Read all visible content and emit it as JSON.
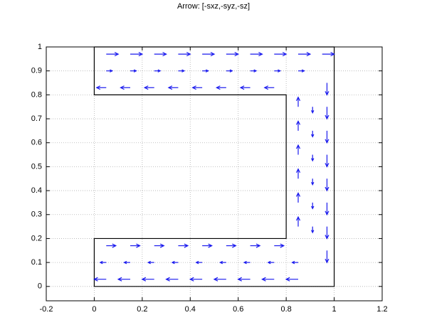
{
  "chart_data": {
    "type": "quiver",
    "title": "Arrow: [-sxz,-syz,-sz]",
    "xlim": [
      -0.2,
      1.2
    ],
    "ylim": [
      -0.06,
      1
    ],
    "xticks": [
      -0.2,
      0,
      0.2,
      0.4,
      0.6,
      0.8,
      1,
      1.2
    ],
    "yticks": [
      0,
      0.1,
      0.2,
      0.3,
      0.4,
      0.5,
      0.6,
      0.7,
      0.8,
      0.9,
      1
    ],
    "grid": true,
    "outline": {
      "color": "#000000",
      "x": [
        0,
        1,
        1,
        0,
        0,
        0.8,
        0.8,
        0,
        0
      ],
      "y": [
        1,
        1,
        0,
        0,
        0.2,
        0.2,
        0.8,
        0.8,
        1
      ]
    },
    "arrows": {
      "color": "#1a1aee",
      "x": [
        0.05,
        0.15,
        0.25,
        0.35,
        0.45,
        0.55,
        0.65,
        0.75,
        0.85,
        0.95,
        0.05,
        0.15,
        0.25,
        0.35,
        0.45,
        0.55,
        0.65,
        0.75,
        0.85,
        0.05,
        0.15,
        0.25,
        0.35,
        0.45,
        0.55,
        0.65,
        0.75,
        0.97,
        0.97,
        0.97,
        0.97,
        0.97,
        0.97,
        0.97,
        0.97,
        0.91,
        0.91,
        0.91,
        0.91,
        0.91,
        0.91,
        0.85,
        0.85,
        0.85,
        0.85,
        0.85,
        0.85,
        0.05,
        0.15,
        0.25,
        0.35,
        0.45,
        0.55,
        0.65,
        0.75,
        0.85,
        0.05,
        0.15,
        0.25,
        0.35,
        0.45,
        0.55,
        0.65,
        0.75,
        0.85,
        0.05,
        0.15,
        0.25,
        0.35,
        0.45,
        0.55,
        0.65,
        0.75
      ],
      "y": [
        0.97,
        0.97,
        0.97,
        0.97,
        0.97,
        0.97,
        0.97,
        0.97,
        0.97,
        0.97,
        0.9,
        0.9,
        0.9,
        0.9,
        0.9,
        0.9,
        0.9,
        0.9,
        0.9,
        0.83,
        0.83,
        0.83,
        0.83,
        0.83,
        0.83,
        0.83,
        0.83,
        0.85,
        0.75,
        0.65,
        0.55,
        0.45,
        0.35,
        0.25,
        0.15,
        0.75,
        0.65,
        0.55,
        0.45,
        0.35,
        0.25,
        0.75,
        0.65,
        0.55,
        0.45,
        0.35,
        0.25,
        0.03,
        0.03,
        0.03,
        0.03,
        0.03,
        0.03,
        0.03,
        0.03,
        0.03,
        0.1,
        0.1,
        0.1,
        0.1,
        0.1,
        0.1,
        0.1,
        0.1,
        0.1,
        0.17,
        0.17,
        0.17,
        0.17,
        0.17,
        0.17,
        0.17,
        0.17
      ],
      "u": [
        0.05,
        0.05,
        0.05,
        0.05,
        0.05,
        0.05,
        0.05,
        0.05,
        0.05,
        0.05,
        0.025,
        0.025,
        0.025,
        0.025,
        0.025,
        0.025,
        0.025,
        0.025,
        0.025,
        -0.04,
        -0.04,
        -0.04,
        -0.04,
        -0.04,
        -0.04,
        -0.04,
        -0.04,
        0,
        0,
        0,
        0,
        0,
        0,
        0,
        0,
        0,
        0,
        0,
        0,
        0,
        0,
        0,
        0,
        0,
        0,
        0,
        0,
        -0.05,
        -0.05,
        -0.05,
        -0.05,
        -0.05,
        -0.05,
        -0.05,
        -0.05,
        -0.05,
        -0.025,
        -0.025,
        -0.025,
        -0.025,
        -0.025,
        -0.025,
        -0.025,
        -0.025,
        -0.025,
        0.04,
        0.04,
        0.04,
        0.04,
        0.04,
        0.04,
        0.04,
        0.04
      ],
      "v": [
        0,
        0,
        0,
        0,
        0,
        0,
        0,
        0,
        0,
        0,
        0,
        0,
        0,
        0,
        0,
        0,
        0,
        0,
        0,
        0,
        0,
        0,
        0,
        0,
        0,
        0,
        0,
        -0.05,
        -0.05,
        -0.05,
        -0.05,
        -0.05,
        -0.05,
        -0.05,
        -0.05,
        -0.025,
        -0.025,
        -0.025,
        -0.025,
        -0.025,
        -0.025,
        0.04,
        0.04,
        0.04,
        0.04,
        0.04,
        0.04,
        0,
        0,
        0,
        0,
        0,
        0,
        0,
        0,
        0,
        0,
        0,
        0,
        0,
        0,
        0,
        0,
        0,
        0,
        0,
        0,
        0,
        0,
        0,
        0,
        0,
        0
      ]
    }
  }
}
